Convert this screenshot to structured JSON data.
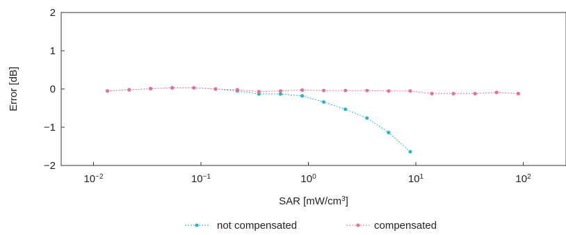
{
  "chart_data": {
    "type": "line",
    "title": "",
    "xlabel": "SAR [mW/cm",
    "xlabel_sup": "3",
    "xlabel_end": "]",
    "ylabel": "Error [dB]",
    "xscale": "log",
    "xlim": [
      0.005,
      250
    ],
    "ylim": [
      -2,
      2
    ],
    "x_ticks": [
      {
        "value": 0.01,
        "base": "10",
        "exp": "−2"
      },
      {
        "value": 0.1,
        "base": "10",
        "exp": "−1"
      },
      {
        "value": 1,
        "base": "10",
        "exp": "0"
      },
      {
        "value": 10,
        "base": "10",
        "exp": "1"
      },
      {
        "value": 100,
        "base": "10",
        "exp": "2"
      }
    ],
    "y_ticks": [
      {
        "value": 2,
        "label": "2"
      },
      {
        "value": 1,
        "label": "1"
      },
      {
        "value": 0,
        "label": "0"
      },
      {
        "value": -1,
        "label": "−1"
      },
      {
        "value": -2,
        "label": "−2"
      }
    ],
    "grid": false,
    "legend_position": "bottom",
    "series": [
      {
        "name": "not compensated",
        "color": "#2ab3c4",
        "x": [
          0.0135,
          0.0215,
          0.034,
          0.054,
          0.086,
          0.137,
          0.218,
          0.346,
          0.55,
          0.875,
          1.39,
          2.21,
          3.51,
          5.58,
          8.87
        ],
        "y": [
          -0.05,
          -0.02,
          0.01,
          0.03,
          0.03,
          0.0,
          -0.05,
          -0.13,
          -0.13,
          -0.18,
          -0.34,
          -0.53,
          -0.76,
          -1.14,
          -1.64
        ]
      },
      {
        "name": "compensated",
        "color": "#e8718e",
        "x": [
          0.0135,
          0.0215,
          0.034,
          0.054,
          0.086,
          0.137,
          0.218,
          0.346,
          0.55,
          0.875,
          1.39,
          2.21,
          3.51,
          5.58,
          8.87,
          14.1,
          22.4,
          35.6,
          56.6,
          90.0
        ],
        "y": [
          -0.05,
          -0.02,
          0.01,
          0.03,
          0.03,
          0.0,
          -0.02,
          -0.07,
          -0.05,
          -0.03,
          -0.04,
          -0.04,
          -0.04,
          -0.05,
          -0.05,
          -0.12,
          -0.12,
          -0.12,
          -0.09,
          -0.12
        ]
      }
    ]
  }
}
